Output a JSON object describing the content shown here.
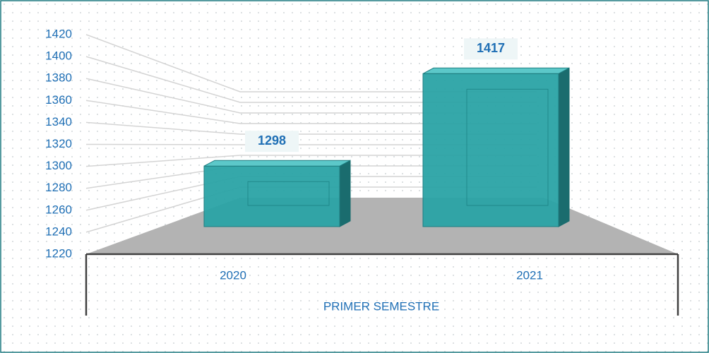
{
  "chart_data": {
    "type": "bar3d",
    "categories": [
      "2020",
      "2021"
    ],
    "values": [
      1298,
      1417
    ],
    "color": "#2aa3a5",
    "xlabel": "PRIMER SEMESTRE",
    "ylim": [
      1220,
      1420
    ],
    "yticks": [
      1220,
      1240,
      1260,
      1280,
      1300,
      1320,
      1340,
      1360,
      1380,
      1400,
      1420
    ],
    "grid": true
  }
}
